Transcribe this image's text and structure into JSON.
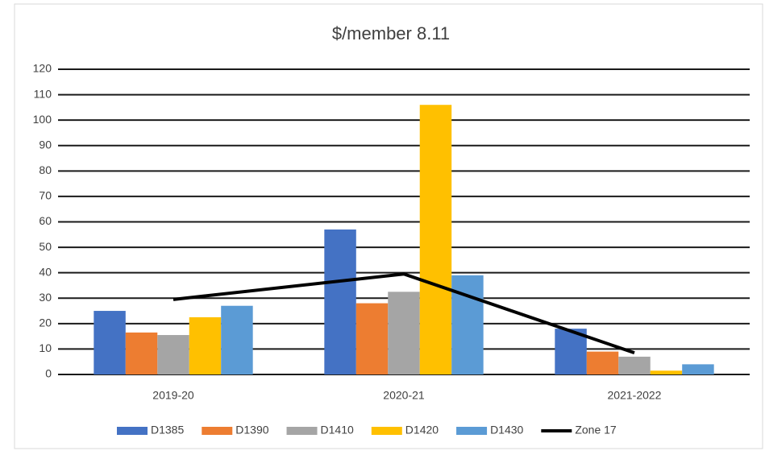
{
  "chart_data": {
    "type": "bar",
    "title": "$/member 8.11",
    "categories": [
      "2019-20",
      "2020-21",
      "2021-2022"
    ],
    "series": [
      {
        "name": "D1385",
        "color": "#4472c4",
        "values": [
          25,
          57,
          18
        ]
      },
      {
        "name": "D1390",
        "color": "#ed7d31",
        "values": [
          16.5,
          28,
          9
        ]
      },
      {
        "name": "D1410",
        "color": "#a5a5a5",
        "values": [
          15.5,
          32.5,
          7
        ]
      },
      {
        "name": "D1420",
        "color": "#ffc000",
        "values": [
          22.5,
          106,
          1.5
        ]
      },
      {
        "name": "D1430",
        "color": "#5b9bd5",
        "values": [
          27,
          39,
          4
        ]
      },
      {
        "name": "Zone 17",
        "color": "#000000",
        "type": "line",
        "values": [
          29.5,
          39.5,
          8.5
        ]
      }
    ],
    "ylim": [
      0,
      120
    ],
    "yticks": [
      0,
      10,
      20,
      30,
      40,
      50,
      60,
      70,
      80,
      90,
      100,
      110,
      120
    ],
    "grid": true,
    "legend": "bottom"
  }
}
